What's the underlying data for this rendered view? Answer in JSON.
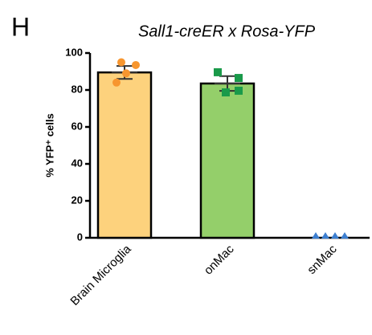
{
  "panel_label": "H",
  "chart_data": {
    "type": "bar",
    "title": "Sall1-creER x Rosa-YFP",
    "y_label": "% YFP⁺ cells",
    "categories": [
      "Brain Microglia",
      "onMac",
      "snMac"
    ],
    "values": [
      89.5,
      83.5,
      0
    ],
    "errors": [
      3.5,
      4,
      0
    ],
    "points": [
      [
        95,
        93.5,
        89,
        84
      ],
      [
        89.6,
        86.5,
        79.6,
        78.7
      ],
      [
        0,
        0,
        0,
        0
      ]
    ],
    "colors": [
      "#fdd27d",
      "#94cf6a",
      "#3d7fd0"
    ],
    "point_colors": [
      "#f7962f",
      "#1a9a4a",
      "#3d7fd0"
    ],
    "markers": [
      "circle",
      "square",
      "triangle"
    ],
    "ylim": [
      0,
      100
    ],
    "yticks": [
      0,
      20,
      40,
      60,
      80,
      100
    ]
  }
}
